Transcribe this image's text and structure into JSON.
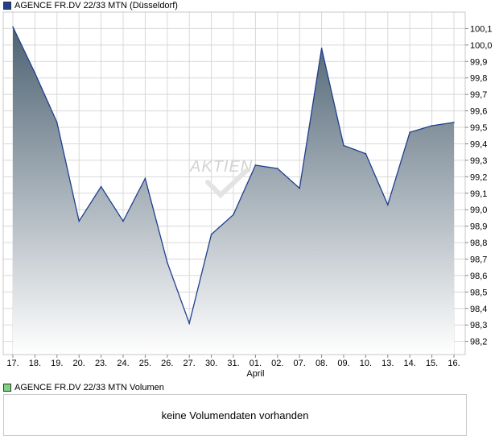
{
  "legend": {
    "price_label": "AGENCE FR.DV 22/33 MTN (Düsseldorf)",
    "volume_label": "AGENCE FR.DV 22/33 MTN Volumen"
  },
  "volume_panel": {
    "message": "keine Volumendaten vorhanden"
  },
  "watermark": "AKTIEN",
  "colors": {
    "line": "#1f3f8f",
    "area_top": "#4d6272",
    "area_bottom": "#ffffff",
    "grid": "#d8d8d8",
    "frame": "#c8c8c8"
  },
  "chart_data": {
    "type": "area",
    "title": "",
    "xlabel": "",
    "ylabel": "",
    "x": [
      "17.",
      "18.",
      "19.",
      "20.",
      "23.",
      "24.",
      "25.",
      "26.",
      "27.",
      "30.",
      "31.",
      "01.",
      "02.",
      "07.",
      "08.",
      "09.",
      "10.",
      "13.",
      "14.",
      "15.",
      "16."
    ],
    "x_sublabels": [
      {
        "index": 11,
        "text": "April"
      }
    ],
    "series": [
      {
        "values": [
          100.11,
          99.83,
          99.53,
          98.93,
          99.14,
          98.93,
          99.19,
          98.68,
          98.31,
          98.85,
          98.97,
          99.27,
          99.25,
          99.13,
          99.98,
          99.39,
          99.34,
          99.03,
          99.47,
          99.51,
          99.53
        ]
      }
    ],
    "ylim": [
      98.12,
      100.2
    ],
    "yticks": [
      "98,2",
      "98,3",
      "98,4",
      "98,5",
      "98,6",
      "98,7",
      "98,8",
      "98,9",
      "99,0",
      "99,1",
      "99,2",
      "99,3",
      "99,4",
      "99,5",
      "99,6",
      "99,7",
      "99,8",
      "99,9",
      "100,0",
      "100,1"
    ],
    "grid": true,
    "legend_position": "top-left"
  }
}
